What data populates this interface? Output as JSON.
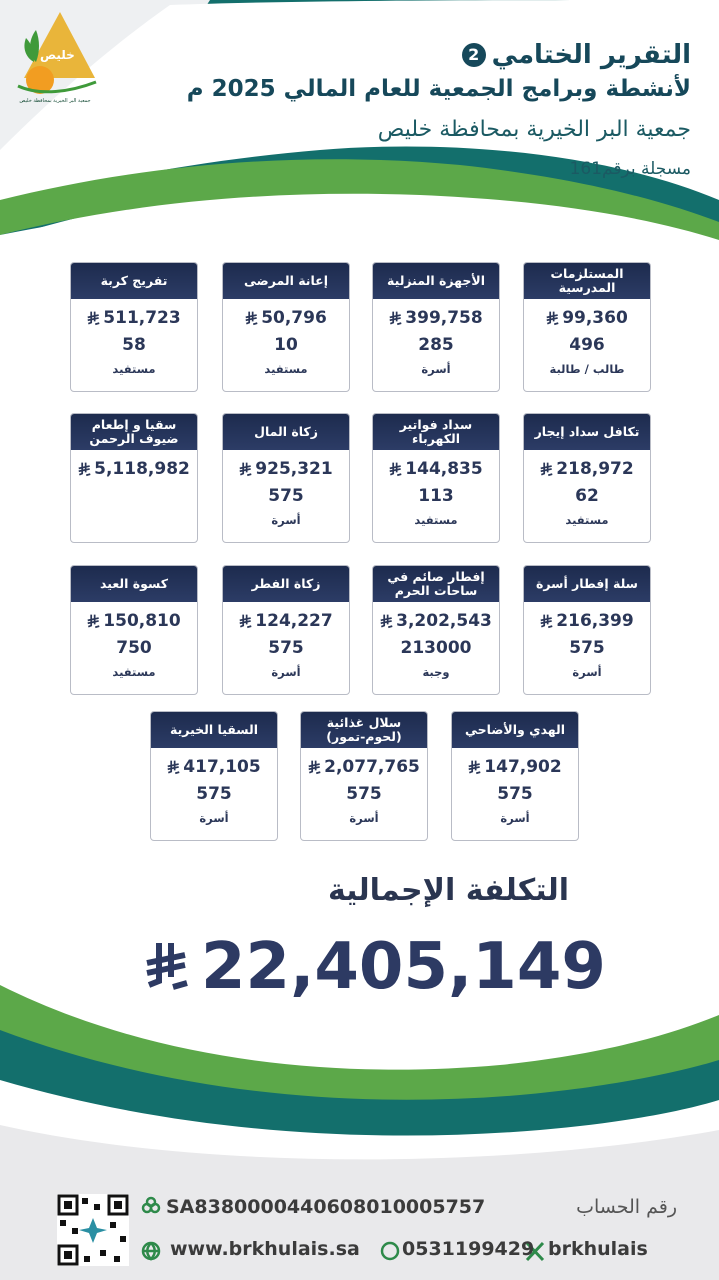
{
  "logo": {
    "name": "خليص",
    "caption": "جمعية البر الخيرية بمحافظة خليص"
  },
  "header": {
    "title": "التقرير الختامي",
    "part": "2",
    "subtitle": "لأنشطة وبرامج الجمعية للعام المالي 2025 م",
    "organization": "جمعية البر الخيرية بمحافظة خليص",
    "registration": "مسجلة برقم161"
  },
  "cards": [
    [
      {
        "title": "المستلزمات المدرسية",
        "amount": "99,360",
        "count": "496",
        "unit": "طالب / طالبة"
      },
      {
        "title": "الأجهزة المنزلية",
        "amount": "399,758",
        "count": "285",
        "unit": "أسرة"
      },
      {
        "title": "إعانة المرضى",
        "amount": "50,796",
        "count": "10",
        "unit": "مستفيد"
      },
      {
        "title": "تفريج كربة",
        "amount": "511,723",
        "count": "58",
        "unit": "مستفيد"
      }
    ],
    [
      {
        "title": "تكافل سداد إيجار",
        "amount": "218,972",
        "count": "62",
        "unit": "مستفيد"
      },
      {
        "title": "سداد فواتير الكهرباء",
        "amount": "144,835",
        "count": "113",
        "unit": "مستفيد"
      },
      {
        "title": "زكاة المال",
        "amount": "925,321",
        "count": "575",
        "unit": "أسرة"
      },
      {
        "title": "سقيا و إطعام ضيوف الرحمن",
        "amount": "5,118,982"
      }
    ],
    [
      {
        "title": "سلة إفطار أسرة",
        "amount": "216,399",
        "count": "575",
        "unit": "أسرة"
      },
      {
        "title": "إفطار صائم في ساحات الحرم",
        "amount": "3,202,543",
        "count": "213000",
        "unit": "وجبة"
      },
      {
        "title": "زكاة الفطر",
        "amount": "124,227",
        "count": "575",
        "unit": "أسرة"
      },
      {
        "title": "كسوة العيد",
        "amount": "150,810",
        "count": "750",
        "unit": "مستفيد"
      }
    ],
    [
      {
        "title": "الهدي والأضاحي",
        "amount": "147,902",
        "count": "575",
        "unit": "أسرة"
      },
      {
        "title": "سلال غذائية (لحوم-تمور)",
        "amount": "2,077,765",
        "count": "575",
        "unit": "أسرة"
      },
      {
        "title": "السقيا الخيرية",
        "amount": "417,105",
        "count": "575",
        "unit": "أسرة"
      }
    ]
  ],
  "total": {
    "label": "التكلفة الإجمالية",
    "amount": "22,405,149"
  },
  "footer": {
    "account_label": "رقم الحساب",
    "iban": "SA8380000440608010005757",
    "website": "www.brkhulais.sa",
    "phone": "0531199429",
    "handle": "brkhulais"
  }
}
